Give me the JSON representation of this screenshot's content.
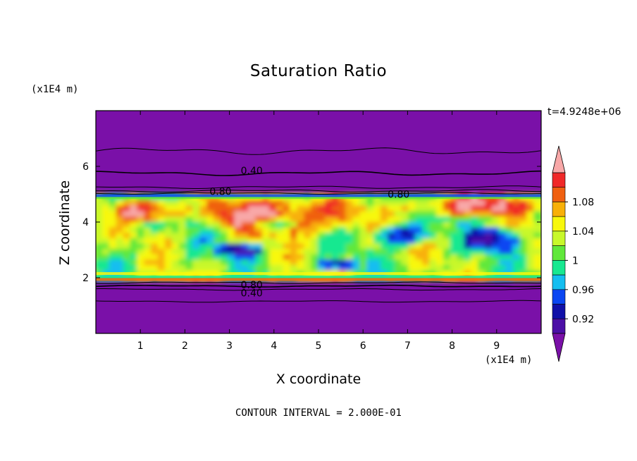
{
  "chart_data": {
    "type": "heatmap",
    "title": "Saturation Ratio",
    "xlabel": "X coordinate",
    "ylabel": "Z coordinate",
    "x_unit_label": "(x1E4 m)",
    "y_unit_label": "(x1E4 m)",
    "time_label": "t=4.9248e+06",
    "footer": "CONTOUR INTERVAL = 2.000E-01",
    "xlim": [
      0,
      10
    ],
    "ylim": [
      0,
      8
    ],
    "x_ticks": [
      "1",
      "2",
      "3",
      "4",
      "5",
      "6",
      "7",
      "8",
      "9"
    ],
    "y_ticks": [
      "2",
      "4",
      "6"
    ],
    "contour_labels": [
      {
        "text": "0.40",
        "x": 3.5,
        "z": 5.85
      },
      {
        "text": "0.80",
        "x": 2.8,
        "z": 5.1
      },
      {
        "text": "0.80",
        "x": 6.8,
        "z": 5.0
      },
      {
        "text": "0.80",
        "x": 3.5,
        "z": 1.75
      },
      {
        "text": "0.40",
        "x": 3.5,
        "z": 1.45
      }
    ],
    "colorbar": {
      "levels": [
        0.9,
        0.92,
        0.94,
        0.96,
        0.98,
        1.0,
        1.02,
        1.04,
        1.06,
        1.08,
        1.1
      ],
      "tick_labels": [
        "0.92",
        "0.96",
        "1",
        "1.04",
        "1.08"
      ],
      "colors": [
        "#4b0fa6",
        "#1010a8",
        "#0a46f2",
        "#14bef0",
        "#18e890",
        "#60e83a",
        "#c8f82a",
        "#f8f80c",
        "#f8b008",
        "#f06010",
        "#f02828"
      ],
      "under_color": "#7a10a8",
      "over_color": "#f8a8a8"
    },
    "moist_layer_z": [
      1.9,
      5.0
    ],
    "background_value_color": "#7a10a8",
    "high_bands": [
      {
        "x": [
          0.4,
          2.2
        ],
        "z": [
          4.0,
          4.9
        ]
      },
      {
        "x": [
          2.3,
          6.1
        ],
        "z": [
          3.5,
          5.0
        ]
      },
      {
        "x": [
          6.9,
          10.0
        ],
        "z": [
          4.2,
          5.0
        ]
      }
    ],
    "low_patches": [
      {
        "x": [
          3.3,
          4.6
        ],
        "z": [
          3.7,
          4.2
        ]
      },
      {
        "x": [
          2.6,
          3.8
        ],
        "z": [
          2.7,
          3.3
        ]
      },
      {
        "x": [
          4.9,
          6.0
        ],
        "z": [
          2.2,
          2.7
        ]
      },
      {
        "x": [
          8.3,
          9.6
        ],
        "z": [
          2.9,
          3.9
        ]
      },
      {
        "x": [
          6.2,
          7.6
        ],
        "z": [
          3.1,
          4.0
        ]
      }
    ]
  }
}
